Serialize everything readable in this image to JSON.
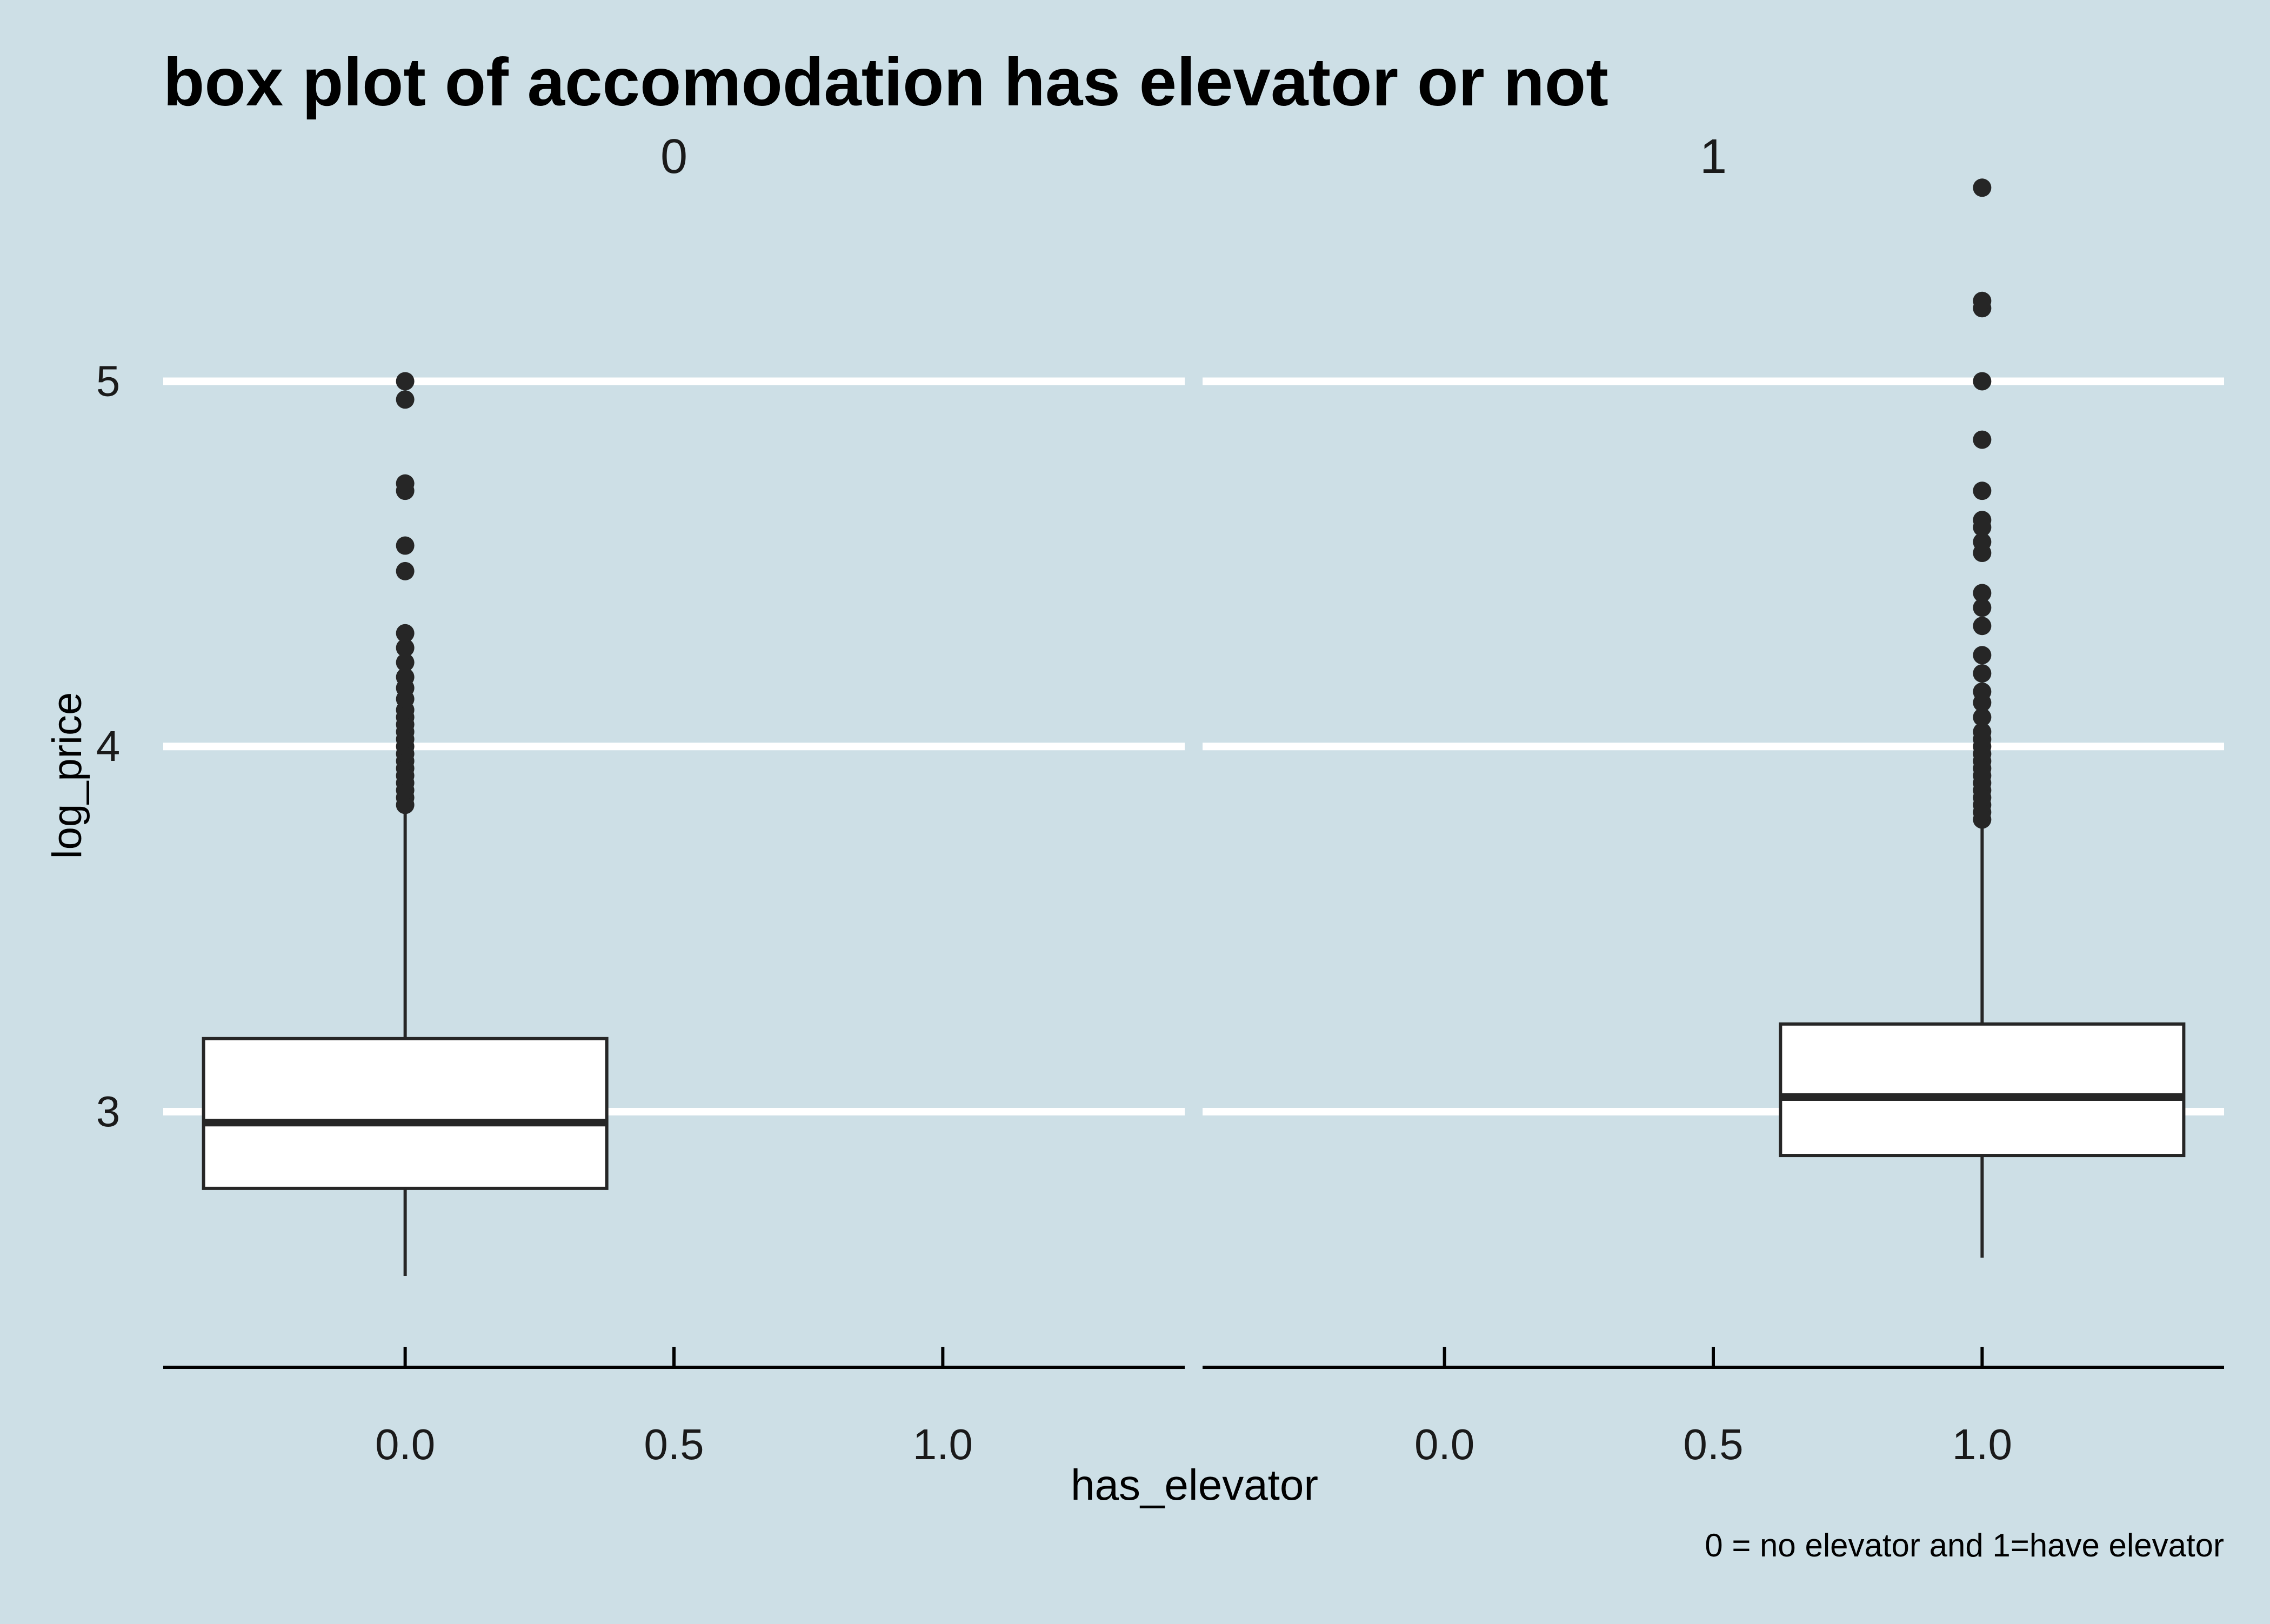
{
  "chart_data": {
    "type": "boxplot",
    "title": "box plot of accomodation has elevator or not",
    "xlabel": "has_elevator",
    "ylabel": "log_price",
    "caption": "0 = no elevator and 1=have elevator",
    "ylim": [
      2.3,
      5.6
    ],
    "yticks": [
      3,
      4,
      5
    ],
    "xlim": [
      -0.45,
      1.45
    ],
    "xticks": [
      0.0,
      0.5,
      1.0
    ],
    "xtick_labels": [
      "0.0",
      "0.5",
      "1.0"
    ],
    "grid": "horizontal",
    "colors": {
      "background": "#cddfe6",
      "grid": "#ffffff",
      "box_fill": "#ffffff",
      "box_line": "#262626",
      "outlier": "#262626",
      "axis": "#000000"
    },
    "facets": [
      {
        "label": "0",
        "box": {
          "x": 0.0,
          "whisker_low": 2.55,
          "q1": 2.79,
          "median": 2.97,
          "q3": 3.2,
          "whisker_high": 3.83,
          "width": 0.75
        },
        "outliers": [
          3.84,
          3.86,
          3.88,
          3.9,
          3.92,
          3.94,
          3.96,
          3.98,
          4.0,
          4.02,
          4.04,
          4.06,
          4.08,
          4.1,
          4.13,
          4.16,
          4.19,
          4.23,
          4.27,
          4.31,
          4.48,
          4.55,
          4.7,
          4.72,
          4.95,
          5.0
        ]
      },
      {
        "label": "1",
        "box": {
          "x": 1.0,
          "whisker_low": 2.6,
          "q1": 2.88,
          "median": 3.04,
          "q3": 3.24,
          "whisker_high": 3.78,
          "width": 0.75
        },
        "outliers": [
          3.8,
          3.82,
          3.84,
          3.86,
          3.88,
          3.9,
          3.92,
          3.94,
          3.96,
          3.98,
          4.0,
          4.02,
          4.04,
          4.08,
          4.12,
          4.15,
          4.2,
          4.25,
          4.33,
          4.38,
          4.42,
          4.53,
          4.56,
          4.6,
          4.62,
          4.7,
          4.84,
          5.0,
          5.2,
          5.22,
          5.53
        ]
      }
    ]
  }
}
